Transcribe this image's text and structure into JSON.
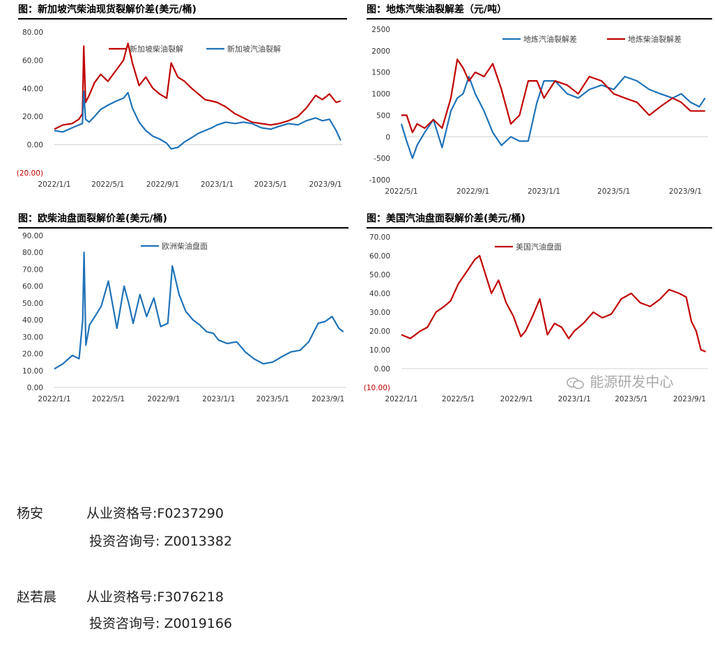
{
  "signatures": [
    {
      "name": "杨安",
      "qual": "从业资格号:F0237290",
      "consult": "投资咨询号: Z0013382"
    },
    {
      "name": "赵若晨",
      "qual": "从业资格号:F3076218",
      "consult": "投资咨询号: Z0019166"
    }
  ],
  "watermark": "能源研发中心",
  "chart_data": [
    {
      "type": "line",
      "title": "图：新加坡汽柴油现货裂解价差(美元/桶)",
      "x_type": "date",
      "xlim": [
        "2022-01-01",
        "2023-10-10"
      ],
      "x_ticks": [
        "2022-01-01",
        "2022-05-01",
        "2022-09-01",
        "2023-01-01",
        "2023-05-01",
        "2023-09-01"
      ],
      "x_tick_labels": [
        "2022/1/1",
        "2022/5/1",
        "2022/9/1",
        "2023/1/1",
        "2023/5/1",
        "2023/9/1"
      ],
      "ylim": [
        -20,
        80
      ],
      "y_ticks": [
        -20,
        0,
        20,
        40,
        60,
        80
      ],
      "y_tick_labels": [
        "(20.00)",
        "0.00",
        "20.00",
        "40.00",
        "60.00",
        "80.00"
      ],
      "negative_label_color": "#c00000",
      "legend_position": "top",
      "series": [
        {
          "name": "新加坡柴油裂解",
          "color": "#c00000",
          "x": [
            "2022-01-01",
            "2022-01-20",
            "2022-02-10",
            "2022-02-25",
            "2022-03-05",
            "2022-03-08",
            "2022-03-12",
            "2022-03-20",
            "2022-04-01",
            "2022-04-15",
            "2022-05-01",
            "2022-05-20",
            "2022-06-05",
            "2022-06-15",
            "2022-06-25",
            "2022-07-10",
            "2022-07-25",
            "2022-08-10",
            "2022-08-25",
            "2022-09-10",
            "2022-09-20",
            "2022-10-05",
            "2022-10-20",
            "2022-11-05",
            "2022-11-20",
            "2022-12-05",
            "2022-12-20",
            "2023-01-01",
            "2023-01-20",
            "2023-02-10",
            "2023-03-01",
            "2023-03-20",
            "2023-04-10",
            "2023-05-01",
            "2023-05-20",
            "2023-06-10",
            "2023-07-01",
            "2023-07-20",
            "2023-08-10",
            "2023-08-25",
            "2023-09-10",
            "2023-09-25",
            "2023-10-05"
          ],
          "y": [
            11,
            14,
            15,
            18,
            22,
            70,
            30,
            35,
            44,
            50,
            45,
            53,
            60,
            72,
            58,
            42,
            48,
            40,
            36,
            33,
            58,
            48,
            45,
            40,
            36,
            32,
            31,
            30,
            27,
            22,
            19,
            16,
            15,
            14,
            15,
            17,
            20,
            26,
            35,
            32,
            36,
            30,
            31
          ]
        },
        {
          "name": "新加坡汽油裂解",
          "color": "#1f72b8",
          "x": [
            "2022-01-01",
            "2022-01-20",
            "2022-02-10",
            "2022-02-25",
            "2022-03-05",
            "2022-03-08",
            "2022-03-12",
            "2022-03-20",
            "2022-04-01",
            "2022-04-15",
            "2022-05-01",
            "2022-05-20",
            "2022-06-05",
            "2022-06-15",
            "2022-06-25",
            "2022-07-10",
            "2022-07-25",
            "2022-08-10",
            "2022-08-25",
            "2022-09-10",
            "2022-09-20",
            "2022-10-05",
            "2022-10-20",
            "2022-11-05",
            "2022-11-20",
            "2022-12-05",
            "2022-12-20",
            "2023-01-01",
            "2023-01-20",
            "2023-02-10",
            "2023-03-01",
            "2023-03-20",
            "2023-04-10",
            "2023-05-01",
            "2023-05-20",
            "2023-06-10",
            "2023-07-01",
            "2023-07-20",
            "2023-08-10",
            "2023-08-25",
            "2023-09-10",
            "2023-09-25",
            "2023-10-05"
          ],
          "y": [
            10,
            9,
            12,
            14,
            15,
            38,
            18,
            16,
            20,
            25,
            28,
            31,
            33,
            37,
            26,
            16,
            10,
            6,
            4,
            1,
            -3,
            -2,
            2,
            5,
            8,
            10,
            12,
            14,
            16,
            15,
            16,
            15,
            12,
            11,
            13,
            15,
            14,
            17,
            19,
            17,
            18,
            10,
            3
          ]
        }
      ]
    },
    {
      "type": "line",
      "title": "图：地炼汽柴油裂解差（元/吨）",
      "x_type": "date",
      "xlim": [
        "2022-05-01",
        "2023-10-10"
      ],
      "x_ticks": [
        "2022-05-01",
        "2022-09-01",
        "2023-01-01",
        "2023-05-01",
        "2023-09-01"
      ],
      "x_tick_labels": [
        "2022/5/1",
        "2022/9/1",
        "2023/1/1",
        "2023/5/1",
        "2023/9/1"
      ],
      "ylim": [
        -1000,
        2500
      ],
      "y_ticks": [
        -1000,
        -500,
        0,
        500,
        1000,
        1500,
        2000,
        2500
      ],
      "y_tick_labels": [
        "-1000",
        "-500",
        "0",
        "500",
        "1000",
        "1500",
        "2000",
        "2500"
      ],
      "legend_position": "top-right",
      "series": [
        {
          "name": "地炼汽油裂解差",
          "color": "#1f72b8",
          "x": [
            "2022-05-01",
            "2022-05-10",
            "2022-05-20",
            "2022-05-28",
            "2022-06-10",
            "2022-06-25",
            "2022-07-10",
            "2022-07-25",
            "2022-08-05",
            "2022-08-15",
            "2022-08-25",
            "2022-09-05",
            "2022-09-20",
            "2022-10-05",
            "2022-10-20",
            "2022-11-05",
            "2022-11-20",
            "2022-12-05",
            "2022-12-20",
            "2023-01-01",
            "2023-01-20",
            "2023-02-10",
            "2023-03-01",
            "2023-03-20",
            "2023-04-10",
            "2023-05-01",
            "2023-05-20",
            "2023-06-10",
            "2023-07-01",
            "2023-07-20",
            "2023-08-10",
            "2023-08-25",
            "2023-09-10",
            "2023-09-25",
            "2023-10-05"
          ],
          "y": [
            300,
            -100,
            -500,
            -200,
            100,
            400,
            -250,
            600,
            900,
            1000,
            1400,
            1000,
            600,
            100,
            -200,
            0,
            -100,
            -100,
            800,
            1300,
            1300,
            1000,
            900,
            1100,
            1200,
            1100,
            1400,
            1300,
            1100,
            1000,
            900,
            1000,
            800,
            700,
            900
          ]
        },
        {
          "name": "地炼柴油裂解差",
          "color": "#c00000",
          "x": [
            "2022-05-01",
            "2022-05-10",
            "2022-05-20",
            "2022-05-28",
            "2022-06-10",
            "2022-06-25",
            "2022-07-10",
            "2022-07-25",
            "2022-08-05",
            "2022-08-15",
            "2022-08-25",
            "2022-09-05",
            "2022-09-20",
            "2022-10-05",
            "2022-10-20",
            "2022-11-05",
            "2022-11-20",
            "2022-12-05",
            "2022-12-20",
            "2023-01-01",
            "2023-01-20",
            "2023-02-10",
            "2023-03-01",
            "2023-03-20",
            "2023-04-10",
            "2023-05-01",
            "2023-05-20",
            "2023-06-10",
            "2023-07-01",
            "2023-07-20",
            "2023-08-10",
            "2023-08-25",
            "2023-09-10",
            "2023-09-25",
            "2023-10-05"
          ],
          "y": [
            500,
            500,
            100,
            300,
            200,
            400,
            200,
            900,
            1800,
            1600,
            1300,
            1500,
            1400,
            1700,
            1100,
            300,
            500,
            1300,
            1300,
            900,
            1300,
            1200,
            1000,
            1400,
            1300,
            1000,
            900,
            800,
            500,
            700,
            900,
            800,
            600,
            600,
            600
          ]
        }
      ]
    },
    {
      "type": "line",
      "title": "图：欧柴油盘面裂解价差(美元/桶)",
      "x_type": "date",
      "xlim": [
        "2022-01-01",
        "2023-10-10"
      ],
      "x_ticks": [
        "2022-01-01",
        "2022-05-01",
        "2022-09-01",
        "2023-01-01",
        "2023-05-01",
        "2023-09-01"
      ],
      "x_tick_labels": [
        "2022/1/1",
        "2022/5/1",
        "2022/9/1",
        "2023/1/1",
        "2023/5/1",
        "2023/9/1"
      ],
      "ylim": [
        0,
        90
      ],
      "y_ticks": [
        0,
        10,
        20,
        30,
        40,
        50,
        60,
        70,
        80,
        90
      ],
      "y_tick_labels": [
        "0.00",
        "10.00",
        "20.00",
        "30.00",
        "40.00",
        "50.00",
        "60.00",
        "70.00",
        "80.00",
        "90.00"
      ],
      "legend_position": "top",
      "series": [
        {
          "name": "欧洲柴油盘面",
          "color": "#1f72b8",
          "x": [
            "2022-01-01",
            "2022-01-20",
            "2022-02-10",
            "2022-02-25",
            "2022-03-05",
            "2022-03-08",
            "2022-03-12",
            "2022-03-20",
            "2022-04-01",
            "2022-04-15",
            "2022-05-01",
            "2022-05-20",
            "2022-06-05",
            "2022-06-15",
            "2022-06-25",
            "2022-07-10",
            "2022-07-25",
            "2022-08-10",
            "2022-08-25",
            "2022-09-10",
            "2022-09-20",
            "2022-10-05",
            "2022-10-20",
            "2022-11-05",
            "2022-11-20",
            "2022-12-05",
            "2022-12-20",
            "2023-01-01",
            "2023-01-20",
            "2023-02-10",
            "2023-03-01",
            "2023-03-20",
            "2023-04-10",
            "2023-05-01",
            "2023-05-20",
            "2023-06-10",
            "2023-07-01",
            "2023-07-20",
            "2023-08-10",
            "2023-08-25",
            "2023-09-10",
            "2023-09-25",
            "2023-10-05"
          ],
          "y": [
            11,
            14,
            19,
            17,
            40,
            80,
            25,
            37,
            42,
            48,
            63,
            35,
            60,
            50,
            38,
            55,
            42,
            53,
            36,
            38,
            72,
            55,
            45,
            40,
            37,
            33,
            32,
            28,
            26,
            27,
            21,
            17,
            14,
            15,
            18,
            21,
            22,
            27,
            38,
            39,
            42,
            35,
            33
          ]
        }
      ]
    },
    {
      "type": "line",
      "title": "图：美国汽油盘面裂解价差(美元/桶)",
      "x_type": "date",
      "xlim": [
        "2022-01-01",
        "2023-10-10"
      ],
      "x_ticks": [
        "2022-01-01",
        "2022-05-01",
        "2022-09-01",
        "2023-01-01",
        "2023-05-01",
        "2023-09-01"
      ],
      "x_tick_labels": [
        "2022/1/1",
        "2022/5/1",
        "2022/9/1",
        "2023/1/1",
        "2023/5/1",
        "2023/9/1"
      ],
      "ylim": [
        -10,
        70
      ],
      "y_ticks": [
        -10,
        0,
        10,
        20,
        30,
        40,
        50,
        60,
        70
      ],
      "y_tick_labels": [
        "(10.00)",
        "0.00",
        "10.00",
        "20.00",
        "30.00",
        "40.00",
        "50.00",
        "60.00",
        "70.00"
      ],
      "negative_label_color": "#c00000",
      "legend_position": "top",
      "series": [
        {
          "name": "美国汽油盘面",
          "color": "#c00000",
          "x": [
            "2022-01-01",
            "2022-01-20",
            "2022-02-10",
            "2022-02-25",
            "2022-03-15",
            "2022-04-01",
            "2022-04-15",
            "2022-05-01",
            "2022-05-20",
            "2022-06-05",
            "2022-06-15",
            "2022-06-25",
            "2022-07-10",
            "2022-07-25",
            "2022-08-10",
            "2022-08-25",
            "2022-09-10",
            "2022-09-20",
            "2022-10-05",
            "2022-10-20",
            "2022-11-05",
            "2022-11-20",
            "2022-12-05",
            "2022-12-20",
            "2023-01-01",
            "2023-01-20",
            "2023-02-10",
            "2023-03-01",
            "2023-03-20",
            "2023-04-10",
            "2023-05-01",
            "2023-05-20",
            "2023-06-10",
            "2023-07-01",
            "2023-07-20",
            "2023-08-10",
            "2023-08-25",
            "2023-09-05",
            "2023-09-15",
            "2023-09-25",
            "2023-10-05"
          ],
          "y": [
            18,
            16,
            20,
            22,
            30,
            33,
            36,
            45,
            52,
            58,
            60,
            52,
            40,
            47,
            35,
            28,
            17,
            20,
            28,
            37,
            18,
            24,
            22,
            16,
            20,
            24,
            30,
            27,
            29,
            37,
            40,
            35,
            33,
            37,
            42,
            40,
            38,
            25,
            20,
            10,
            9
          ]
        }
      ]
    }
  ]
}
